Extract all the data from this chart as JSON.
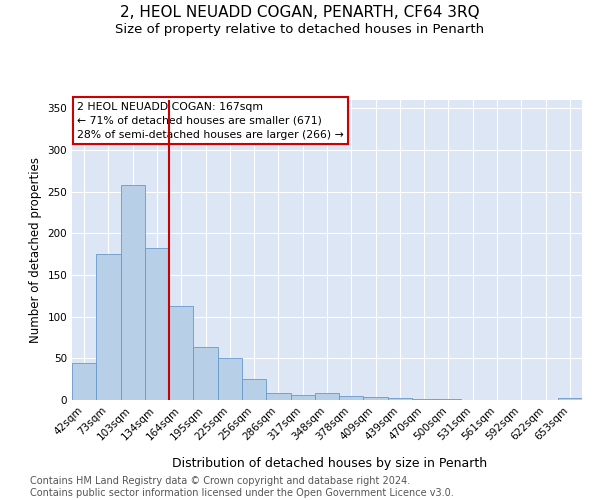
{
  "title": "2, HEOL NEUADD COGAN, PENARTH, CF64 3RQ",
  "subtitle": "Size of property relative to detached houses in Penarth",
  "xlabel": "Distribution of detached houses by size in Penarth",
  "ylabel": "Number of detached properties",
  "categories": [
    "42sqm",
    "73sqm",
    "103sqm",
    "134sqm",
    "164sqm",
    "195sqm",
    "225sqm",
    "256sqm",
    "286sqm",
    "317sqm",
    "348sqm",
    "378sqm",
    "409sqm",
    "439sqm",
    "470sqm",
    "500sqm",
    "531sqm",
    "561sqm",
    "592sqm",
    "622sqm",
    "653sqm"
  ],
  "values": [
    44,
    175,
    258,
    183,
    113,
    64,
    50,
    25,
    8,
    6,
    8,
    5,
    4,
    3,
    1,
    1,
    0,
    0,
    0,
    0,
    3
  ],
  "bar_color": "#b8cfe8",
  "bar_edge_color": "#6699cc",
  "vline_color": "#cc0000",
  "annotation_text": "2 HEOL NEUADD COGAN: 167sqm\n← 71% of detached houses are smaller (671)\n28% of semi-detached houses are larger (266) →",
  "annotation_box_color": "white",
  "annotation_box_edge_color": "#cc0000",
  "ylim": [
    0,
    360
  ],
  "yticks": [
    0,
    50,
    100,
    150,
    200,
    250,
    300,
    350
  ],
  "background_color": "#dce6f5",
  "footer_text": "Contains HM Land Registry data © Crown copyright and database right 2024.\nContains public sector information licensed under the Open Government Licence v3.0.",
  "title_fontsize": 11,
  "subtitle_fontsize": 9.5,
  "xlabel_fontsize": 9,
  "ylabel_fontsize": 8.5,
  "tick_fontsize": 7.5,
  "footer_fontsize": 7,
  "vline_bar_index": 4
}
